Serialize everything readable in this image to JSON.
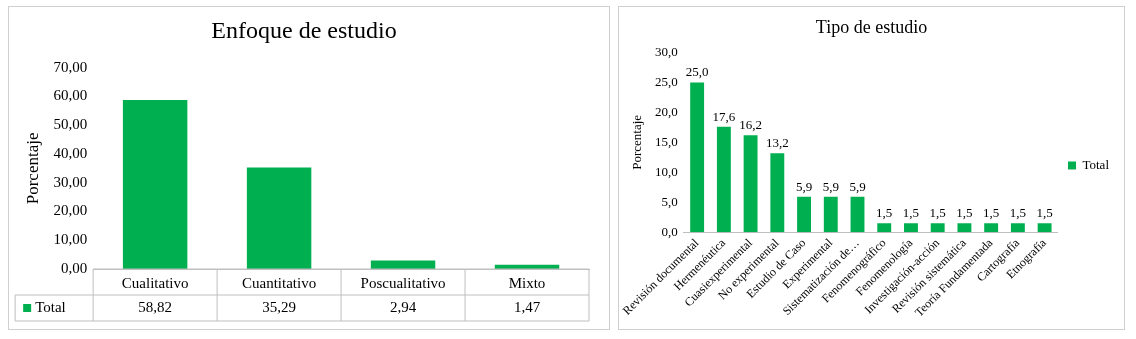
{
  "chart_data": [
    {
      "type": "bar",
      "title": "Enfoque de estudio",
      "ylabel": "Porcentaje",
      "categories": [
        "Cualitativo",
        "Cuantitativo",
        "Poscualitativo",
        "Mixto"
      ],
      "series": [
        {
          "name": "Total",
          "color": "#00b050",
          "values": [
            58.82,
            35.29,
            2.94,
            1.47
          ],
          "value_labels": [
            "58,82",
            "35,29",
            "2,94",
            "1,47"
          ]
        }
      ],
      "ylim": [
        0,
        70
      ],
      "yticks": [
        {
          "value": 0,
          "label": "0,00"
        },
        {
          "value": 10,
          "label": "10,00"
        },
        {
          "value": 20,
          "label": "20,00"
        },
        {
          "value": 30,
          "label": "30,00"
        },
        {
          "value": 40,
          "label": "40,00"
        },
        {
          "value": 50,
          "label": "50,00"
        },
        {
          "value": 60,
          "label": "60,00"
        },
        {
          "value": 70,
          "label": "70,00"
        }
      ],
      "grid": false,
      "legend": "bottom"
    },
    {
      "type": "bar",
      "title": "Tipo de estudio",
      "ylabel": "Porcentaje",
      "categories": [
        "Revisión documental",
        "Hermenéutica",
        "Cuasiexperimental",
        "No experimental",
        "Estudio de Caso",
        "Experimental",
        "Sistematización de…",
        "Fenomenográfico",
        "Fenomenología",
        "Investigación-acción",
        "Revisión sistemática",
        "Teoría Fundamentada",
        "Cartografía",
        "Etnografía"
      ],
      "series": [
        {
          "name": "Total",
          "color": "#00b050",
          "values": [
            25.0,
            17.6,
            16.2,
            13.2,
            5.9,
            5.9,
            5.9,
            1.5,
            1.5,
            1.5,
            1.5,
            1.5,
            1.5,
            1.5
          ],
          "value_labels": [
            "25,0",
            "17,6",
            "16,2",
            "13,2",
            "5,9",
            "5,9",
            "5,9",
            "1,5",
            "1,5",
            "1,5",
            "1,5",
            "1,5",
            "1,5",
            "1,5"
          ]
        }
      ],
      "ylim": [
        0,
        30
      ],
      "yticks": [
        {
          "value": 0,
          "label": "0,0"
        },
        {
          "value": 5,
          "label": "5,0"
        },
        {
          "value": 10,
          "label": "10,0"
        },
        {
          "value": 15,
          "label": "15,0"
        },
        {
          "value": 20,
          "label": "20,0"
        },
        {
          "value": 25,
          "label": "25,0"
        },
        {
          "value": 30,
          "label": "30,0"
        }
      ],
      "grid": false,
      "legend": "right"
    }
  ]
}
